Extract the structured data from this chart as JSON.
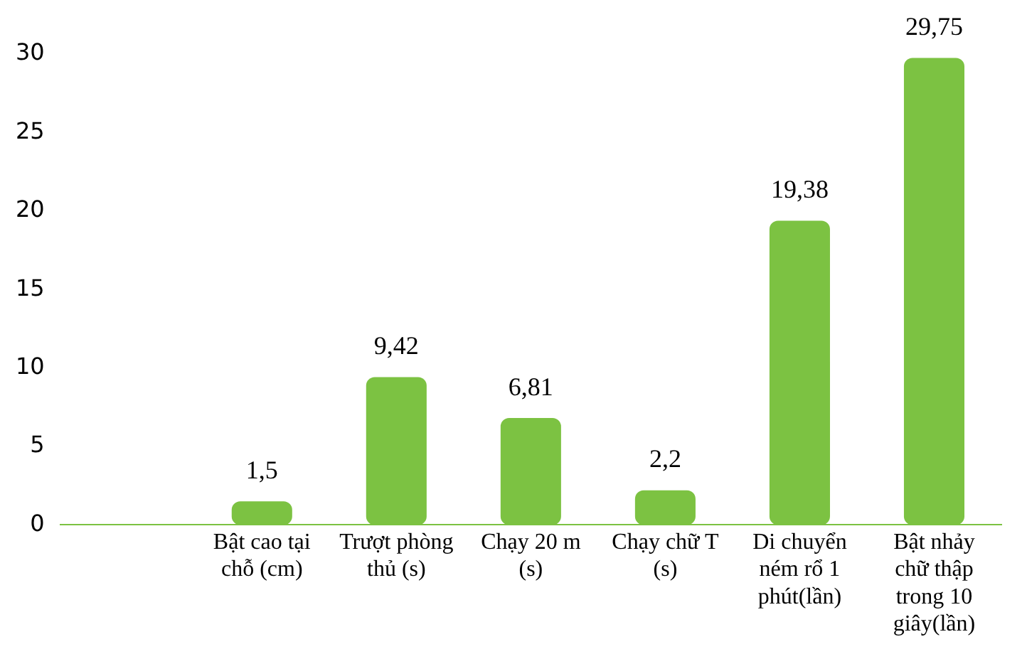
{
  "chart_data": {
    "type": "bar",
    "categories": [
      null,
      "Bật cao tại chỗ (cm)",
      "Trượt phòng thủ (s)",
      "Chạy 20 m (s)",
      "Chạy chữ T (s)",
      "Di chuyển ném rổ 1 phút(lần)",
      "Bật nhảy chữ thập trong 10 giây(lần)"
    ],
    "values": [
      null,
      1.5,
      9.42,
      6.81,
      2.2,
      19.38,
      29.75
    ],
    "color": "#7cc242",
    "ylim": [
      0,
      30
    ],
    "yticks": [
      0,
      5,
      10,
      15,
      20,
      25,
      30
    ],
    "value_labels": [
      null,
      "1,5",
      "9,42",
      "6,81",
      "2,2",
      "19,38",
      "29,75"
    ],
    "grid": false,
    "legend": false
  }
}
